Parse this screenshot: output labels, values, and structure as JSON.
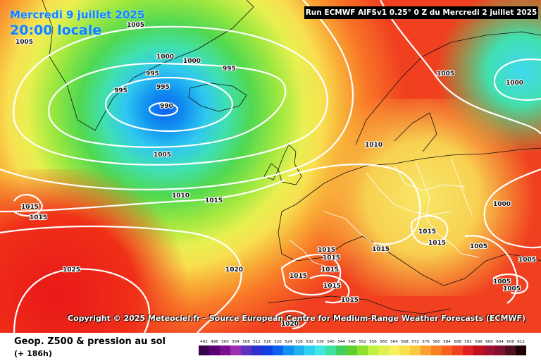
{
  "header": {
    "valid_date": "Mercredi 9 juillet 2025",
    "valid_time": "20:00 locale",
    "run_info": "Run ECMWF AIFSv1 0.25° 0 Z du Mercredi 2 juillet 2025"
  },
  "copyright": "Copyright © 2025 Meteociel.fr - Source European Centre for Medium-Range Weather Forecasts (ECMWF)",
  "footer": {
    "title": "Geop. Z500 & pression au sol",
    "subtitle": "(+ 186h)"
  },
  "legend": {
    "values": [
      "492",
      "496",
      "500",
      "504",
      "508",
      "512",
      "516",
      "520",
      "524",
      "528",
      "532",
      "536",
      "540",
      "544",
      "548",
      "552",
      "556",
      "560",
      "564",
      "568",
      "572",
      "576",
      "580",
      "584",
      "588",
      "592",
      "596",
      "600",
      "604",
      "608",
      "612"
    ],
    "colors": [
      "#3a0050",
      "#5a0070",
      "#7a1090",
      "#9a30b0",
      "#6030c0",
      "#3030d0",
      "#1040e0",
      "#1060f0",
      "#1090f0",
      "#20b0f0",
      "#30d0f0",
      "#40e8e0",
      "#40e0a0",
      "#40d060",
      "#60d030",
      "#90e030",
      "#c0f040",
      "#e0f050",
      "#f8f060",
      "#f8e050",
      "#f8c840",
      "#f8a030",
      "#f88020",
      "#f86020",
      "#f04020",
      "#e02020",
      "#c01020",
      "#a01030",
      "#801030",
      "#501020",
      "#200000"
    ]
  },
  "pressure_labels": [
    {
      "id": "lbl-1005-a",
      "text": "1005"
    },
    {
      "id": "lbl-1005-b",
      "text": "1005"
    },
    {
      "id": "lbl-1000-a",
      "text": "1000"
    },
    {
      "id": "lbl-1000-b",
      "text": "1000"
    },
    {
      "id": "lbl-995-a",
      "text": "995"
    },
    {
      "id": "lbl-995-b",
      "text": "995"
    },
    {
      "id": "lbl-995-c",
      "text": "995"
    },
    {
      "id": "lbl-995-d",
      "text": "995"
    },
    {
      "id": "lbl-990",
      "text": "990"
    },
    {
      "id": "lbl-1005-c",
      "text": "1005"
    },
    {
      "id": "lbl-1000-c",
      "text": "1000"
    },
    {
      "id": "lbl-1005-d",
      "text": "1005"
    },
    {
      "id": "lbl-1010-a",
      "text": "1010"
    },
    {
      "id": "lbl-1010-b",
      "text": "1010"
    },
    {
      "id": "lbl-1015-a",
      "text": "1015"
    },
    {
      "id": "lbl-1015-b",
      "text": "1015"
    },
    {
      "id": "lbl-1015-c",
      "text": "1015"
    },
    {
      "id": "lbl-1000-d",
      "text": "1000"
    },
    {
      "id": "lbl-1015-d",
      "text": "1015"
    },
    {
      "id": "lbl-1015-e",
      "text": "1015"
    },
    {
      "id": "lbl-1015-f",
      "text": "1015"
    },
    {
      "id": "lbl-1015-g",
      "text": "1015"
    },
    {
      "id": "lbl-1005-e",
      "text": "1005"
    },
    {
      "id": "lbl-1025",
      "text": "1025"
    },
    {
      "id": "lbl-1020-a",
      "text": "1020"
    },
    {
      "id": "lbl-1015-h",
      "text": "1015"
    },
    {
      "id": "lbl-1015-i",
      "text": "1015"
    },
    {
      "id": "lbl-1015-j",
      "text": "1015"
    },
    {
      "id": "lbl-1015-k",
      "text": "1015"
    },
    {
      "id": "lbl-1015-l",
      "text": "1015"
    },
    {
      "id": "lbl-1005-f",
      "text": "1005"
    },
    {
      "id": "lbl-1005-g",
      "text": "1005"
    },
    {
      "id": "lbl-1005-h",
      "text": "1005"
    },
    {
      "id": "lbl-1020-b",
      "text": "1020"
    }
  ]
}
